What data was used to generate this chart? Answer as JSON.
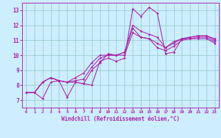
{
  "xlabel": "Windchill (Refroidissement éolien,°C)",
  "xlim": [
    -0.5,
    23.5
  ],
  "ylim": [
    6.5,
    13.5
  ],
  "xticks": [
    0,
    1,
    2,
    3,
    4,
    5,
    6,
    7,
    8,
    9,
    10,
    11,
    12,
    13,
    14,
    15,
    16,
    17,
    18,
    19,
    20,
    21,
    22,
    23
  ],
  "yticks": [
    7,
    8,
    9,
    10,
    11,
    12,
    13
  ],
  "bg_color": "#cceeff",
  "line_color": "#aa22aa",
  "grid_color": "#99cccc",
  "series": [
    [
      7.5,
      7.5,
      7.1,
      8.2,
      8.3,
      7.2,
      8.2,
      8.1,
      8.0,
      9.6,
      9.8,
      9.6,
      9.8,
      13.1,
      12.6,
      13.2,
      12.8,
      10.1,
      10.2,
      11.1,
      11.1,
      11.1,
      11.1,
      10.8
    ],
    [
      7.5,
      7.5,
      8.2,
      8.5,
      8.3,
      8.2,
      8.2,
      8.1,
      9.0,
      9.5,
      10.1,
      10.0,
      10.0,
      11.5,
      11.2,
      11.1,
      10.5,
      10.3,
      10.6,
      11.0,
      11.1,
      11.2,
      11.2,
      10.9
    ],
    [
      7.5,
      7.5,
      8.2,
      8.5,
      8.3,
      8.2,
      8.3,
      8.4,
      9.2,
      9.8,
      10.0,
      10.0,
      10.2,
      11.8,
      11.2,
      11.1,
      10.8,
      10.5,
      10.8,
      11.1,
      11.2,
      11.3,
      11.3,
      11.0
    ],
    [
      7.5,
      7.5,
      8.2,
      8.5,
      8.3,
      8.2,
      8.5,
      8.8,
      9.5,
      10.0,
      10.0,
      10.0,
      10.2,
      12.0,
      11.6,
      11.4,
      11.2,
      10.5,
      10.9,
      11.1,
      11.2,
      11.3,
      11.3,
      11.1
    ]
  ]
}
